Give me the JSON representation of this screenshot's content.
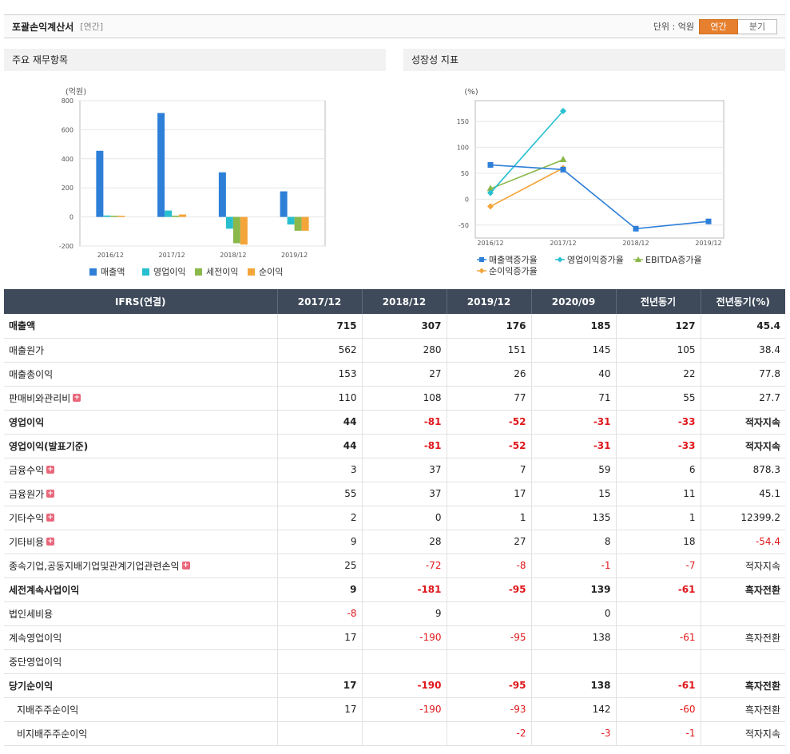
{
  "header": {
    "title": "포괄손익계산서",
    "sub": "[연간]",
    "unit": "단위 : 억원",
    "tab_annual": "연간",
    "tab_quarter": "분기"
  },
  "panels": {
    "left_title": "주요 재무항목",
    "right_title": "성장성 지표"
  },
  "colors": {
    "sales": "#2d7fd8",
    "op": "#27bfd0",
    "pretax": "#8bb84a",
    "net": "#f4a53a",
    "negative": "#e0171b",
    "header_bg": "#3e4a5a",
    "accent": "#e67f2e"
  },
  "chart_data": [
    {
      "type": "bar",
      "title": "",
      "ylabel": "(억원)",
      "categories": [
        "2016/12",
        "2017/12",
        "2018/12",
        "2019/12"
      ],
      "ylim": [
        -200,
        800
      ],
      "yticks": [
        800,
        600,
        400,
        200,
        0,
        -200
      ],
      "series": [
        {
          "name": "매출액",
          "values": [
            455,
            715,
            307,
            176
          ]
        },
        {
          "name": "영업이익",
          "values": [
            10,
            44,
            -81,
            -52
          ]
        },
        {
          "name": "세전이익",
          "values": [
            8,
            9,
            -181,
            -95
          ]
        },
        {
          "name": "순이익",
          "values": [
            8,
            17,
            -190,
            -95
          ]
        }
      ],
      "grid": true,
      "legend": "bottom"
    },
    {
      "type": "line",
      "title": "",
      "ylabel": "(%)",
      "categories": [
        "2016/12",
        "2017/12",
        "2018/12",
        "2019/12"
      ],
      "ylim": [
        -75,
        190
      ],
      "yticks": [
        150,
        100,
        50,
        0,
        -50
      ],
      "series": [
        {
          "name": "매출액증가율",
          "values": [
            66,
            57,
            -57,
            -43
          ]
        },
        {
          "name": "영업이익증가율",
          "values": [
            12,
            170,
            null,
            null
          ]
        },
        {
          "name": "EBITDA증가율",
          "values": [
            20,
            76,
            null,
            null
          ]
        },
        {
          "name": "순이익증가율",
          "values": [
            -14,
            60,
            null,
            null
          ]
        }
      ],
      "grid": true,
      "legend": "bottom"
    }
  ],
  "table": {
    "columns": [
      "IFRS(연결)",
      "2017/12",
      "2018/12",
      "2019/12",
      "2020/09",
      "전년동기",
      "전년동기(%)"
    ],
    "rows": [
      {
        "label": "매출액",
        "bold": true,
        "plus": false,
        "indent": false,
        "values": [
          "715",
          "307",
          "176",
          "185",
          "127",
          "45.4"
        ],
        "neg": [
          false,
          false,
          false,
          false,
          false,
          false
        ]
      },
      {
        "label": "매출원가",
        "bold": false,
        "plus": false,
        "indent": false,
        "values": [
          "562",
          "280",
          "151",
          "145",
          "105",
          "38.4"
        ],
        "neg": [
          false,
          false,
          false,
          false,
          false,
          false
        ]
      },
      {
        "label": "매출총이익",
        "bold": false,
        "plus": false,
        "indent": false,
        "values": [
          "153",
          "27",
          "26",
          "40",
          "22",
          "77.8"
        ],
        "neg": [
          false,
          false,
          false,
          false,
          false,
          false
        ]
      },
      {
        "label": "판매비와관리비",
        "bold": false,
        "plus": true,
        "indent": false,
        "values": [
          "110",
          "108",
          "77",
          "71",
          "55",
          "27.7"
        ],
        "neg": [
          false,
          false,
          false,
          false,
          false,
          false
        ]
      },
      {
        "label": "영업이익",
        "bold": true,
        "plus": false,
        "indent": false,
        "values": [
          "44",
          "-81",
          "-52",
          "-31",
          "-33",
          "적자지속"
        ],
        "neg": [
          false,
          true,
          true,
          true,
          true,
          false
        ]
      },
      {
        "label": "영업이익(발표기준)",
        "bold": true,
        "plus": false,
        "indent": false,
        "values": [
          "44",
          "-81",
          "-52",
          "-31",
          "-33",
          "적자지속"
        ],
        "neg": [
          false,
          true,
          true,
          true,
          true,
          false
        ]
      },
      {
        "label": "금융수익",
        "bold": false,
        "plus": true,
        "indent": false,
        "values": [
          "3",
          "37",
          "7",
          "59",
          "6",
          "878.3"
        ],
        "neg": [
          false,
          false,
          false,
          false,
          false,
          false
        ]
      },
      {
        "label": "금융원가",
        "bold": false,
        "plus": true,
        "indent": false,
        "values": [
          "55",
          "37",
          "17",
          "15",
          "11",
          "45.1"
        ],
        "neg": [
          false,
          false,
          false,
          false,
          false,
          false
        ]
      },
      {
        "label": "기타수익",
        "bold": false,
        "plus": true,
        "indent": false,
        "values": [
          "2",
          "0",
          "1",
          "135",
          "1",
          "12399.2"
        ],
        "neg": [
          false,
          false,
          false,
          false,
          false,
          false
        ]
      },
      {
        "label": "기타비용",
        "bold": false,
        "plus": true,
        "indent": false,
        "values": [
          "9",
          "28",
          "27",
          "8",
          "18",
          "-54.4"
        ],
        "neg": [
          false,
          false,
          false,
          false,
          false,
          true
        ]
      },
      {
        "label": "종속기업,공동지배기업및관계기업관련손익",
        "bold": false,
        "plus": true,
        "indent": false,
        "values": [
          "25",
          "-72",
          "-8",
          "-1",
          "-7",
          "적자지속"
        ],
        "neg": [
          false,
          true,
          true,
          true,
          true,
          false
        ]
      },
      {
        "label": "세전계속사업이익",
        "bold": true,
        "plus": false,
        "indent": false,
        "values": [
          "9",
          "-181",
          "-95",
          "139",
          "-61",
          "흑자전환"
        ],
        "neg": [
          false,
          true,
          true,
          false,
          true,
          false
        ]
      },
      {
        "label": "법인세비용",
        "bold": false,
        "plus": false,
        "indent": false,
        "values": [
          "-8",
          "9",
          "",
          "0",
          "",
          ""
        ],
        "neg": [
          true,
          false,
          false,
          false,
          false,
          false
        ]
      },
      {
        "label": "계속영업이익",
        "bold": false,
        "plus": false,
        "indent": false,
        "values": [
          "17",
          "-190",
          "-95",
          "138",
          "-61",
          "흑자전환"
        ],
        "neg": [
          false,
          true,
          true,
          false,
          true,
          false
        ]
      },
      {
        "label": "중단영업이익",
        "bold": false,
        "plus": false,
        "indent": false,
        "values": [
          "",
          "",
          "",
          "",
          "",
          ""
        ],
        "neg": [
          false,
          false,
          false,
          false,
          false,
          false
        ]
      },
      {
        "label": "당기순이익",
        "bold": true,
        "plus": false,
        "indent": false,
        "values": [
          "17",
          "-190",
          "-95",
          "138",
          "-61",
          "흑자전환"
        ],
        "neg": [
          false,
          true,
          true,
          false,
          true,
          false
        ]
      },
      {
        "label": "지배주주순이익",
        "bold": false,
        "plus": false,
        "indent": true,
        "values": [
          "17",
          "-190",
          "-93",
          "142",
          "-60",
          "흑자전환"
        ],
        "neg": [
          false,
          true,
          true,
          false,
          true,
          false
        ]
      },
      {
        "label": "비지배주주순이익",
        "bold": false,
        "plus": false,
        "indent": true,
        "values": [
          "",
          "",
          "-2",
          "-3",
          "-1",
          "적자지속"
        ],
        "neg": [
          false,
          false,
          true,
          true,
          true,
          false
        ]
      }
    ]
  }
}
